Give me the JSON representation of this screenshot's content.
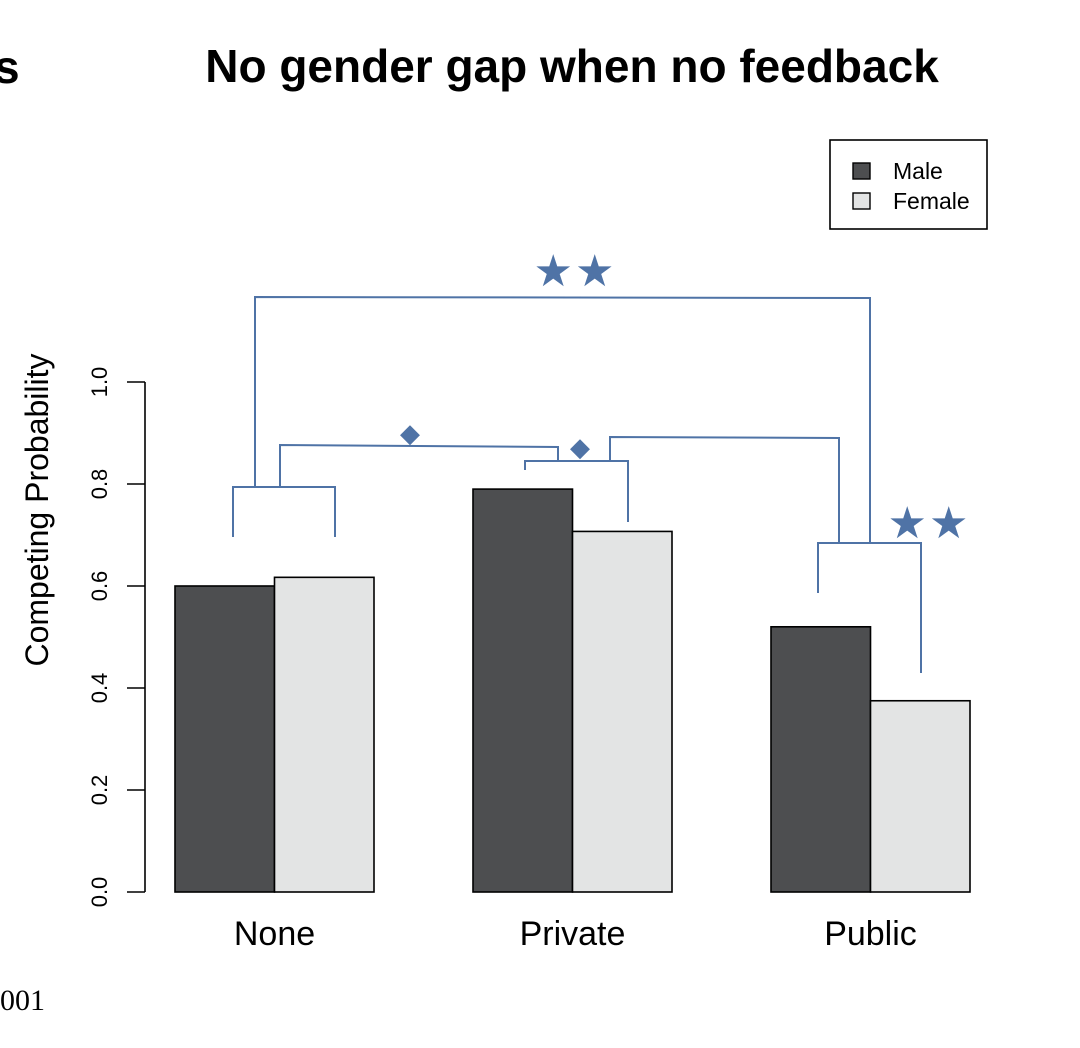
{
  "edge_text": {
    "top_left": "s",
    "bottom_left": "001"
  },
  "chart_data": {
    "type": "bar",
    "title": "No gender gap when no feedback",
    "xlabel": "",
    "ylabel": "Competing Probability",
    "ylim": [
      0,
      1.0
    ],
    "yticks": [
      "0.0",
      "0.2",
      "0.4",
      "0.6",
      "0.8",
      "1.0"
    ],
    "categories": [
      "None",
      "Private",
      "Public"
    ],
    "series": [
      {
        "name": "Male",
        "values": [
          0.6,
          0.79,
          0.52
        ],
        "color": "#4d4e50"
      },
      {
        "name": "Female",
        "values": [
          0.617,
          0.707,
          0.375
        ],
        "color": "#e3e4e4"
      }
    ],
    "legend": {
      "placement": "top-right"
    },
    "grid": false,
    "annotation_color": "#4f73a6",
    "annotations": {
      "big_bracket_marker": "★★",
      "public_marker": "★★",
      "none_private_marker": "◆",
      "private_public_marker": "◆"
    }
  }
}
